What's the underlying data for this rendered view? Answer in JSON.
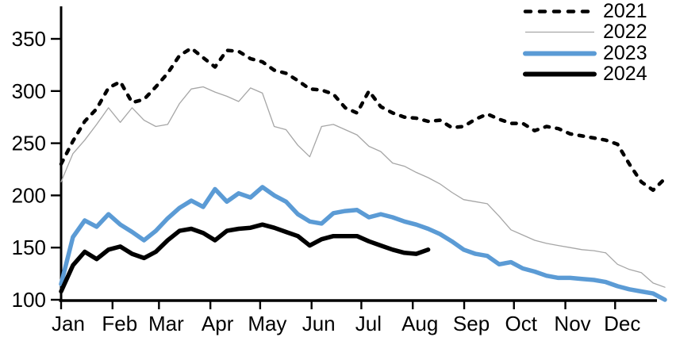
{
  "chart_data": {
    "type": "line",
    "title": "",
    "xlabel": "",
    "ylabel": "",
    "x_unit": "weekly points across one calendar year",
    "x_axis": {
      "tick_labels": [
        "Jan",
        "Feb",
        "Mar",
        "Apr",
        "May",
        "Jun",
        "Jul",
        "Aug",
        "Sep",
        "Oct",
        "Nov",
        "Dec"
      ]
    },
    "y_axis": {
      "tick_labels": [
        "100",
        "150",
        "200",
        "250",
        "300",
        "350"
      ],
      "ticks": [
        100,
        150,
        200,
        250,
        300,
        350
      ],
      "range": [
        100,
        350
      ]
    },
    "grid": "off",
    "legend_position": "top-right",
    "colors": {
      "black": "#000000",
      "gray": "#a6a6a6",
      "blue": "#5b9bd5"
    },
    "series": [
      {
        "name": "2021",
        "color": "#000000",
        "style": "dashed",
        "width": 4.5,
        "values": [
          230,
          252,
          271,
          283,
          303,
          309,
          289,
          292,
          304,
          317,
          334,
          341,
          332,
          323,
          339,
          338,
          331,
          328,
          320,
          317,
          310,
          302,
          301,
          297,
          284,
          279,
          300,
          285,
          279,
          275,
          274,
          271,
          272,
          265,
          266,
          273,
          278,
          273,
          269,
          269,
          262,
          266,
          264,
          259,
          257,
          255,
          253,
          249,
          230,
          213,
          205,
          216
        ]
      },
      {
        "name": "2022",
        "color": "#a6a6a6",
        "style": "solid",
        "width": 1.3,
        "values": [
          213,
          240,
          253,
          268,
          284,
          270,
          284,
          272,
          266,
          268,
          288,
          302,
          304,
          299,
          295,
          290,
          303,
          298,
          266,
          263,
          248,
          237,
          266,
          268,
          263,
          258,
          247,
          242,
          231,
          228,
          222,
          217,
          211,
          203,
          196,
          194,
          192,
          180,
          167,
          162,
          157,
          154,
          152,
          150,
          148,
          147,
          145,
          134,
          129,
          126,
          116,
          112
        ]
      },
      {
        "name": "2023",
        "color": "#5b9bd5",
        "style": "solid",
        "width": 5.5,
        "values": [
          115,
          160,
          176,
          170,
          182,
          172,
          165,
          157,
          166,
          178,
          188,
          195,
          189,
          206,
          194,
          202,
          198,
          208,
          200,
          194,
          182,
          175,
          173,
          183,
          185,
          186,
          179,
          182,
          179,
          175,
          172,
          168,
          163,
          156,
          148,
          144,
          142,
          134,
          136,
          130,
          127,
          123,
          121,
          121,
          120,
          119,
          117,
          113,
          110,
          108,
          106,
          100
        ]
      },
      {
        "name": "2024",
        "color": "#000000",
        "style": "solid",
        "width": 5.5,
        "values": [
          108,
          133,
          146,
          139,
          148,
          151,
          144,
          140,
          146,
          157,
          166,
          168,
          164,
          157,
          166,
          168,
          169,
          172,
          169,
          165,
          161,
          152,
          158,
          161,
          161,
          161,
          156,
          152,
          148,
          145,
          144,
          148
        ]
      }
    ]
  }
}
